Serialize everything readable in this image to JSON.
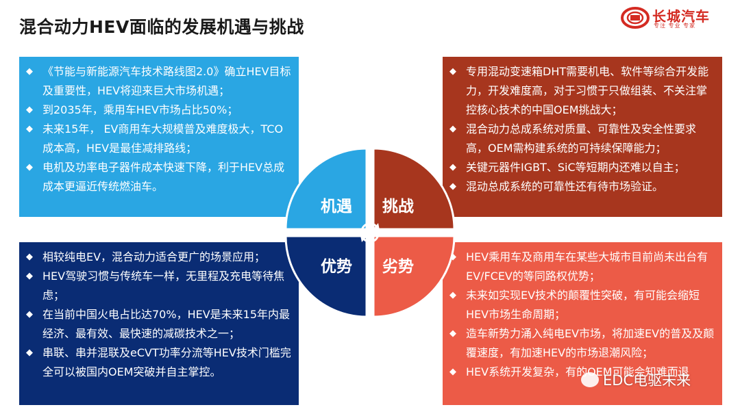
{
  "title": "混合动力HEV面临的发展机遇与挑战",
  "logo": {
    "brand": "长城汽车",
    "slogan": "专注 专业 专家"
  },
  "quadrants": {
    "tl": "机遇",
    "tr": "挑战",
    "bl": "优势",
    "br": "劣势"
  },
  "opportunities": [
    "《节能与新能源汽车技术路线图2.0》确立HEV目标及重要性，HEV将迎来巨大市场机遇；",
    "到2035年，乘用车HEV市场占比50%；",
    "未来15年， EV商用车大规模普及难度极大，TCO成本高，HEV是最佳减排路线；",
    "电机及功率电子器件成本快速下降，利于HEV总成成本更逼近传统燃油车。"
  ],
  "challenges": [
    "专用混动变速箱DHT需要机电、软件等综合开发能力，开发难度高，对于习惯于只做组装、不关注掌控核心技术的中国OEM挑战大；",
    "混合动力总成系统对质量、可靠性及安全性要求高，OEM需构建系统的可持续保障能力；",
    "关键元器件IGBT、SiC等短期内还难以自主；",
    "混动总成系统的可靠性还有待市场验证。"
  ],
  "advantages": [
    "相较纯电EV，混合动力适合更广的场景应用；",
    "HEV驾驶习惯与传统车一样，无里程及充电等待焦虑；",
    "在当前中国火电占比达70%，HEV是未来15年内最经济、最有效、最快速的减碳技术之一；",
    "串联、串并混联及eCVT功率分流等HEV技术门槛完全可以被国内OEM突破并自主掌控。"
  ],
  "disadvantages": [
    "HEV乘用车及商用车在某些大城市目前尚未出台有EV/FCEV的等同路权优势；",
    "未来如实现EV技术的颠覆性突破，有可能会缩短HEV市场生命周期；",
    "造车新势力涌入纯电EV市场，将加速EV的普及及颠覆速度，有加速HEV的市场退潮风险；",
    "HEV系统开发复杂，有的OEM可能会知难而退"
  ],
  "watermark": "EDC电驱未来",
  "colors": {
    "opportunity": "#2aa6e3",
    "challenge": "#a7361e",
    "advantage": "#0a2c74",
    "disadvantage": "#ec5b47"
  }
}
